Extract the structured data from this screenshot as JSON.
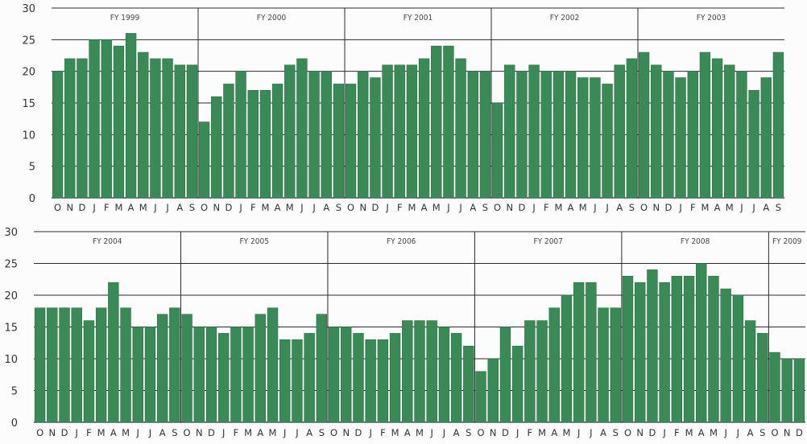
{
  "chart_data": [
    {
      "type": "bar",
      "name": "top-chart",
      "ylim": [
        0,
        30
      ],
      "yticks": [
        0,
        5,
        10,
        15,
        20,
        25,
        30
      ],
      "grid": true,
      "color": "#3a8a57",
      "categories": [
        "O",
        "N",
        "D",
        "J",
        "F",
        "M",
        "A",
        "M",
        "J",
        "J",
        "A",
        "S",
        "O",
        "N",
        "D",
        "J",
        "F",
        "M",
        "A",
        "M",
        "J",
        "J",
        "A",
        "S",
        "O",
        "N",
        "D",
        "J",
        "F",
        "M",
        "A",
        "M",
        "J",
        "J",
        "A",
        "S",
        "O",
        "N",
        "D",
        "J",
        "F",
        "M",
        "A",
        "M",
        "J",
        "J",
        "A",
        "S",
        "O",
        "N",
        "D",
        "J",
        "F",
        "M",
        "A",
        "M",
        "J",
        "J",
        "A",
        "S"
      ],
      "values": [
        20,
        22,
        22,
        25,
        25,
        24,
        26,
        23,
        22,
        22,
        21,
        21,
        12,
        16,
        18,
        20,
        17,
        17,
        18,
        21,
        22,
        20,
        20,
        18,
        18,
        20,
        19,
        21,
        21,
        21,
        22,
        24,
        24,
        22,
        20,
        20,
        15,
        21,
        20,
        21,
        20,
        20,
        20,
        19,
        19,
        18,
        21,
        22,
        23,
        21,
        20,
        19,
        20,
        23,
        22,
        21,
        20,
        17,
        19,
        23
      ],
      "fiscal_years": [
        {
          "label": "FY 1999",
          "start": 0,
          "count": 12
        },
        {
          "label": "FY 2000",
          "start": 12,
          "count": 12
        },
        {
          "label": "FY 2001",
          "start": 24,
          "count": 12
        },
        {
          "label": "FY 2002",
          "start": 36,
          "count": 12
        },
        {
          "label": "FY 2003",
          "start": 48,
          "count": 12
        }
      ]
    },
    {
      "type": "bar",
      "name": "bottom-chart",
      "ylim": [
        0,
        30
      ],
      "yticks": [
        0,
        5,
        10,
        15,
        20,
        25,
        30
      ],
      "grid": true,
      "color": "#3a8a57",
      "categories": [
        "O",
        "N",
        "D",
        "J",
        "F",
        "M",
        "A",
        "M",
        "J",
        "J",
        "A",
        "S",
        "O",
        "N",
        "D",
        "J",
        "F",
        "M",
        "A",
        "M",
        "J",
        "J",
        "A",
        "S",
        "O",
        "N",
        "D",
        "J",
        "F",
        "M",
        "A",
        "M",
        "J",
        "J",
        "A",
        "S",
        "O",
        "N",
        "D",
        "J",
        "F",
        "M",
        "A",
        "M",
        "J",
        "J",
        "A",
        "S",
        "O",
        "N",
        "D",
        "J",
        "F",
        "M",
        "A",
        "M",
        "J",
        "J",
        "A",
        "S",
        "O",
        "N",
        "D"
      ],
      "values": [
        18,
        18,
        18,
        18,
        16,
        18,
        22,
        18,
        15,
        15,
        17,
        18,
        17,
        15,
        15,
        14,
        15,
        15,
        17,
        18,
        13,
        13,
        14,
        17,
        15,
        15,
        14,
        13,
        13,
        14,
        16,
        16,
        16,
        15,
        14,
        12,
        8,
        10,
        15,
        12,
        16,
        16,
        18,
        20,
        22,
        22,
        18,
        18,
        23,
        22,
        24,
        22,
        23,
        23,
        25,
        23,
        21,
        20,
        16,
        14,
        11,
        10,
        10
      ],
      "fiscal_years": [
        {
          "label": "FY 2004",
          "start": 0,
          "count": 12
        },
        {
          "label": "FY 2005",
          "start": 12,
          "count": 12
        },
        {
          "label": "FY 2006",
          "start": 24,
          "count": 12
        },
        {
          "label": "FY 2007",
          "start": 36,
          "count": 12
        },
        {
          "label": "FY 2008",
          "start": 48,
          "count": 12
        },
        {
          "label": "FY 2009",
          "start": 60,
          "count": 3
        }
      ]
    }
  ]
}
